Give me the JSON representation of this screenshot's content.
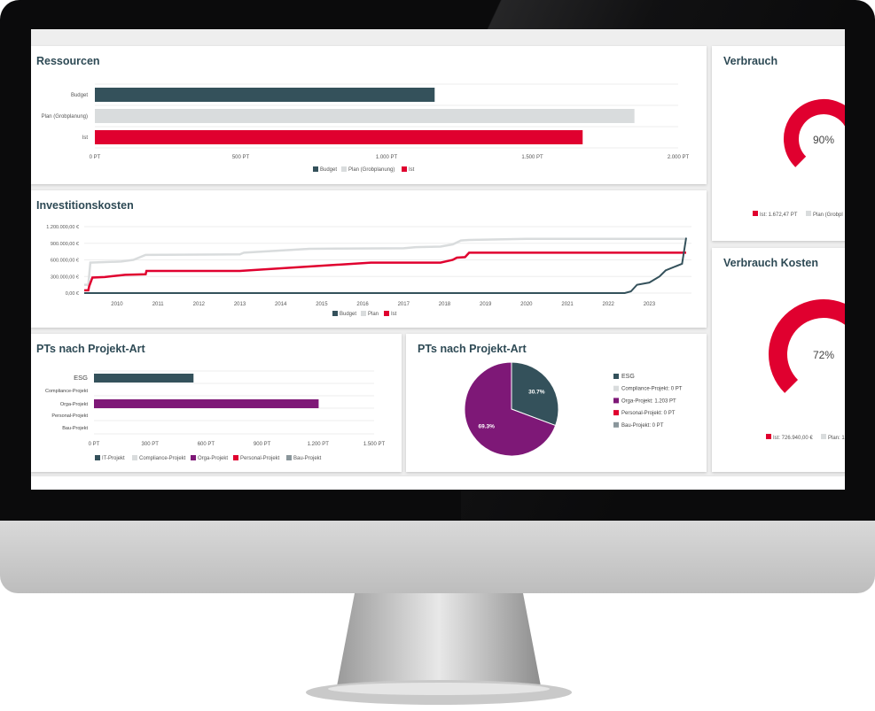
{
  "colors": {
    "budget": "#34515b",
    "plan": "#d9dcdd",
    "ist": "#e0002f",
    "orga": "#7e1877",
    "bau": "#8a969b",
    "compliance": "#d9dcdd",
    "title": "#2e4a55"
  },
  "cards": {
    "ressourcen": {
      "title": "Ressourcen"
    },
    "invest": {
      "title": "Investitionskosten"
    },
    "pts_bar": {
      "title": "PTs nach Projekt-Art"
    },
    "pts_pie": {
      "title": "PTs nach Projekt-Art"
    },
    "verbrauch": {
      "title": "Verbrauch",
      "value_label": "90%",
      "legend": [
        "Ist: 1.672,47 PT",
        "Plan (Grobpl"
      ]
    },
    "verbrauch_kosten": {
      "title": "Verbrauch Kosten",
      "value_label": "72%",
      "legend": [
        "Ist: 726.940,00 €",
        "Plan: 1"
      ]
    }
  },
  "chart_data": [
    {
      "type": "bar",
      "orientation": "horizontal",
      "title": "Ressourcen",
      "categories": [
        "Budget",
        "Plan (Grobplanung)",
        "Ist"
      ],
      "values": [
        1165,
        1850,
        1672.47
      ],
      "xlim": [
        0,
        2000
      ],
      "xticks": [
        "0 PT",
        "500 PT",
        "1.000 PT",
        "1.500 PT",
        "2.000 PT"
      ],
      "legend": [
        "Budget",
        "Plan (Grobplanung)",
        "Ist"
      ],
      "legend_position": "bottom",
      "grid": true
    },
    {
      "type": "line",
      "title": "Investitionskosten",
      "step": true,
      "xlim": [
        2009.2,
        2023.9
      ],
      "ylim": [
        0,
        1200000
      ],
      "xticks": [
        "2010",
        "2011",
        "2012",
        "2013",
        "2014",
        "2015",
        "2016",
        "2017",
        "2018",
        "2019",
        "2020",
        "2021",
        "2022",
        "2023"
      ],
      "yticks": [
        "0,00 €",
        "300.000,00 €",
        "600.000,00 €",
        "900.000,00 €",
        "1.200.000,00 €"
      ],
      "legend_position": "bottom",
      "grid": true,
      "series": [
        {
          "name": "Budget",
          "points": [
            [
              2009.2,
              0
            ],
            [
              2022.4,
              0
            ],
            [
              2022.55,
              30000
            ],
            [
              2022.7,
              150000
            ],
            [
              2023.0,
              190000
            ],
            [
              2023.25,
              300000
            ],
            [
              2023.4,
              410000
            ],
            [
              2023.8,
              530000
            ],
            [
              2023.9,
              1000000
            ]
          ]
        },
        {
          "name": "Plan",
          "points": [
            [
              2009.2,
              150000
            ],
            [
              2009.3,
              150000
            ],
            [
              2009.35,
              550000
            ],
            [
              2010.1,
              570000
            ],
            [
              2010.4,
              600000
            ],
            [
              2010.7,
              690000
            ],
            [
              2013.0,
              700000
            ],
            [
              2013.1,
              730000
            ],
            [
              2014.7,
              800000
            ],
            [
              2017.0,
              810000
            ],
            [
              2017.3,
              830000
            ],
            [
              2017.9,
              840000
            ],
            [
              2018.2,
              880000
            ],
            [
              2018.4,
              950000
            ],
            [
              2018.6,
              960000
            ],
            [
              2020.0,
              980000
            ],
            [
              2023.9,
              980000
            ]
          ]
        },
        {
          "name": "Ist",
          "points": [
            [
              2009.2,
              50000
            ],
            [
              2009.3,
              50000
            ],
            [
              2009.32,
              120000
            ],
            [
              2009.4,
              280000
            ],
            [
              2009.7,
              290000
            ],
            [
              2010.2,
              330000
            ],
            [
              2010.7,
              340000
            ],
            [
              2010.72,
              400000
            ],
            [
              2013.0,
              400000
            ],
            [
              2016.2,
              550000
            ],
            [
              2017.9,
              550000
            ],
            [
              2018.2,
              600000
            ],
            [
              2018.3,
              640000
            ],
            [
              2018.5,
              650000
            ],
            [
              2018.6,
              730000
            ],
            [
              2023.9,
              730000
            ]
          ]
        }
      ]
    },
    {
      "type": "bar",
      "orientation": "horizontal",
      "title": "PTs nach Projekt-Art",
      "categories": [
        "ESG",
        "Compliance-Projekt",
        "Orga-Projekt",
        "Personal-Projekt",
        "Bau-Projekt"
      ],
      "values": [
        533,
        0,
        1203,
        0,
        0
      ],
      "xlim": [
        0,
        1500
      ],
      "xticks": [
        "0 PT",
        "300 PT",
        "600 PT",
        "900 PT",
        "1.200 PT",
        "1.500 PT"
      ],
      "legend": [
        "IT-Projekt",
        "Compliance-Projekt",
        "Orga-Projekt",
        "Personal-Projekt",
        "Bau-Projekt"
      ],
      "legend_position": "bottom",
      "grid": true
    },
    {
      "type": "pie",
      "title": "PTs nach Projekt-Art",
      "slices": [
        {
          "label": "ESG",
          "value": 30.7,
          "data_label": "30.7%"
        },
        {
          "label": "Orga-Projekt",
          "value": 69.3,
          "data_label": "69.3%"
        }
      ],
      "legend": [
        "ESG",
        "Compliance-Projekt: 0 PT",
        "Orga-Projekt: 1.203 PT",
        "Personal-Projekt: 0 PT",
        "Bau-Projekt: 0 PT"
      ],
      "legend_position": "right"
    },
    {
      "type": "gauge",
      "title": "Verbrauch",
      "value": 90
    },
    {
      "type": "gauge",
      "title": "Verbrauch Kosten",
      "value": 72
    }
  ]
}
